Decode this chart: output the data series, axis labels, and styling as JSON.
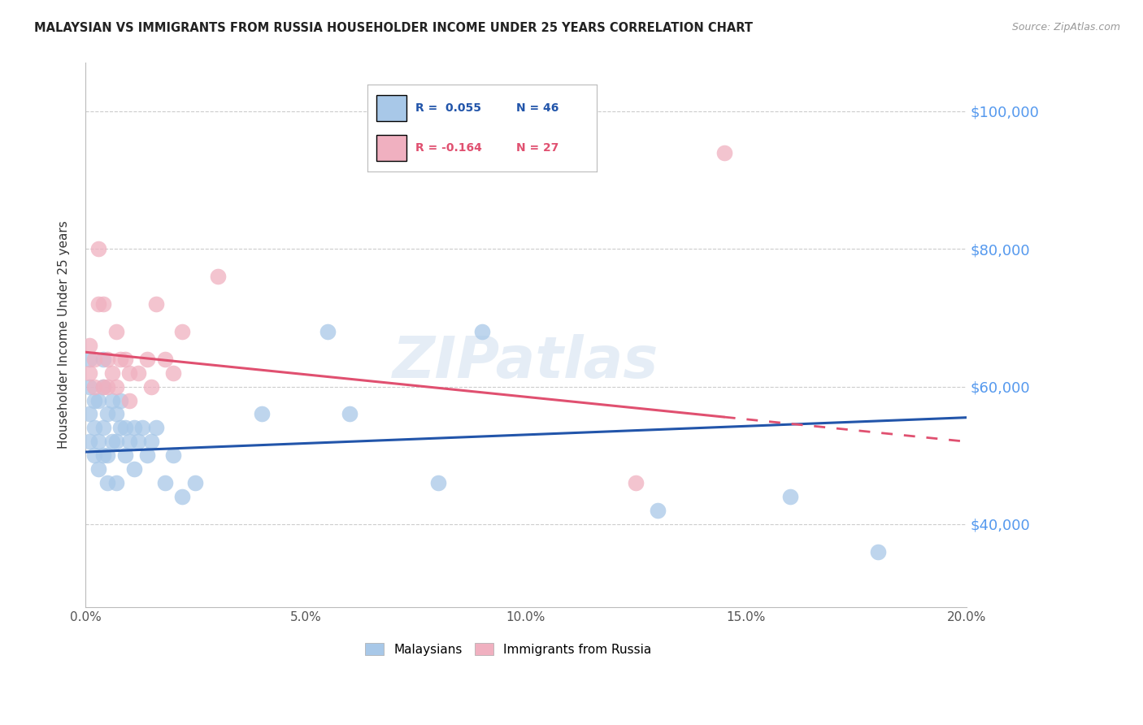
{
  "title": "MALAYSIAN VS IMMIGRANTS FROM RUSSIA HOUSEHOLDER INCOME UNDER 25 YEARS CORRELATION CHART",
  "source": "Source: ZipAtlas.com",
  "ylabel": "Householder Income Under 25 years",
  "xlabel_ticks": [
    "0.0%",
    "5.0%",
    "10.0%",
    "15.0%",
    "20.0%"
  ],
  "xlabel_vals": [
    0.0,
    0.05,
    0.1,
    0.15,
    0.2
  ],
  "ylabel_ticks": [
    "$40,000",
    "$60,000",
    "$80,000",
    "$100,000"
  ],
  "ylabel_vals": [
    40000,
    60000,
    80000,
    100000
  ],
  "xlim": [
    0.0,
    0.2
  ],
  "ylim": [
    28000,
    107000
  ],
  "legend_R_blue": "R =  0.055",
  "legend_N_blue": "N = 46",
  "legend_R_pink": "R = -0.164",
  "legend_N_pink": "N = 27",
  "blue_color": "#a8c8e8",
  "pink_color": "#f0b0c0",
  "line_blue": "#2255AA",
  "line_pink": "#E05070",
  "watermark": "ZIPatlas",
  "blue_scatter_x": [
    0.001,
    0.001,
    0.001,
    0.001,
    0.002,
    0.002,
    0.002,
    0.003,
    0.003,
    0.003,
    0.004,
    0.004,
    0.004,
    0.004,
    0.005,
    0.005,
    0.005,
    0.006,
    0.006,
    0.007,
    0.007,
    0.007,
    0.008,
    0.008,
    0.009,
    0.009,
    0.01,
    0.011,
    0.011,
    0.012,
    0.013,
    0.014,
    0.015,
    0.016,
    0.018,
    0.02,
    0.022,
    0.025,
    0.04,
    0.055,
    0.06,
    0.08,
    0.09,
    0.13,
    0.16,
    0.18
  ],
  "blue_scatter_y": [
    52000,
    56000,
    60000,
    64000,
    50000,
    54000,
    58000,
    48000,
    52000,
    58000,
    50000,
    54000,
    60000,
    64000,
    46000,
    50000,
    56000,
    52000,
    58000,
    46000,
    52000,
    56000,
    54000,
    58000,
    50000,
    54000,
    52000,
    48000,
    54000,
    52000,
    54000,
    50000,
    52000,
    54000,
    46000,
    50000,
    44000,
    46000,
    56000,
    68000,
    56000,
    46000,
    68000,
    42000,
    44000,
    36000
  ],
  "pink_scatter_x": [
    0.001,
    0.001,
    0.002,
    0.002,
    0.003,
    0.003,
    0.004,
    0.004,
    0.005,
    0.005,
    0.006,
    0.007,
    0.007,
    0.008,
    0.009,
    0.01,
    0.01,
    0.012,
    0.014,
    0.015,
    0.016,
    0.018,
    0.02,
    0.022,
    0.03,
    0.125,
    0.145
  ],
  "pink_scatter_y": [
    62000,
    66000,
    60000,
    64000,
    72000,
    80000,
    60000,
    72000,
    60000,
    64000,
    62000,
    60000,
    68000,
    64000,
    64000,
    58000,
    62000,
    62000,
    64000,
    60000,
    72000,
    64000,
    62000,
    68000,
    76000,
    46000,
    94000
  ],
  "trendline_blue_x0": 0.0,
  "trendline_blue_x1": 0.2,
  "trendline_blue_y0": 50500,
  "trendline_blue_y1": 55500,
  "trendline_pink_x0": 0.0,
  "trendline_pink_x1": 0.2,
  "trendline_pink_y0": 65000,
  "trendline_pink_y1": 52000,
  "trendline_pink_solid_end_x": 0.145
}
